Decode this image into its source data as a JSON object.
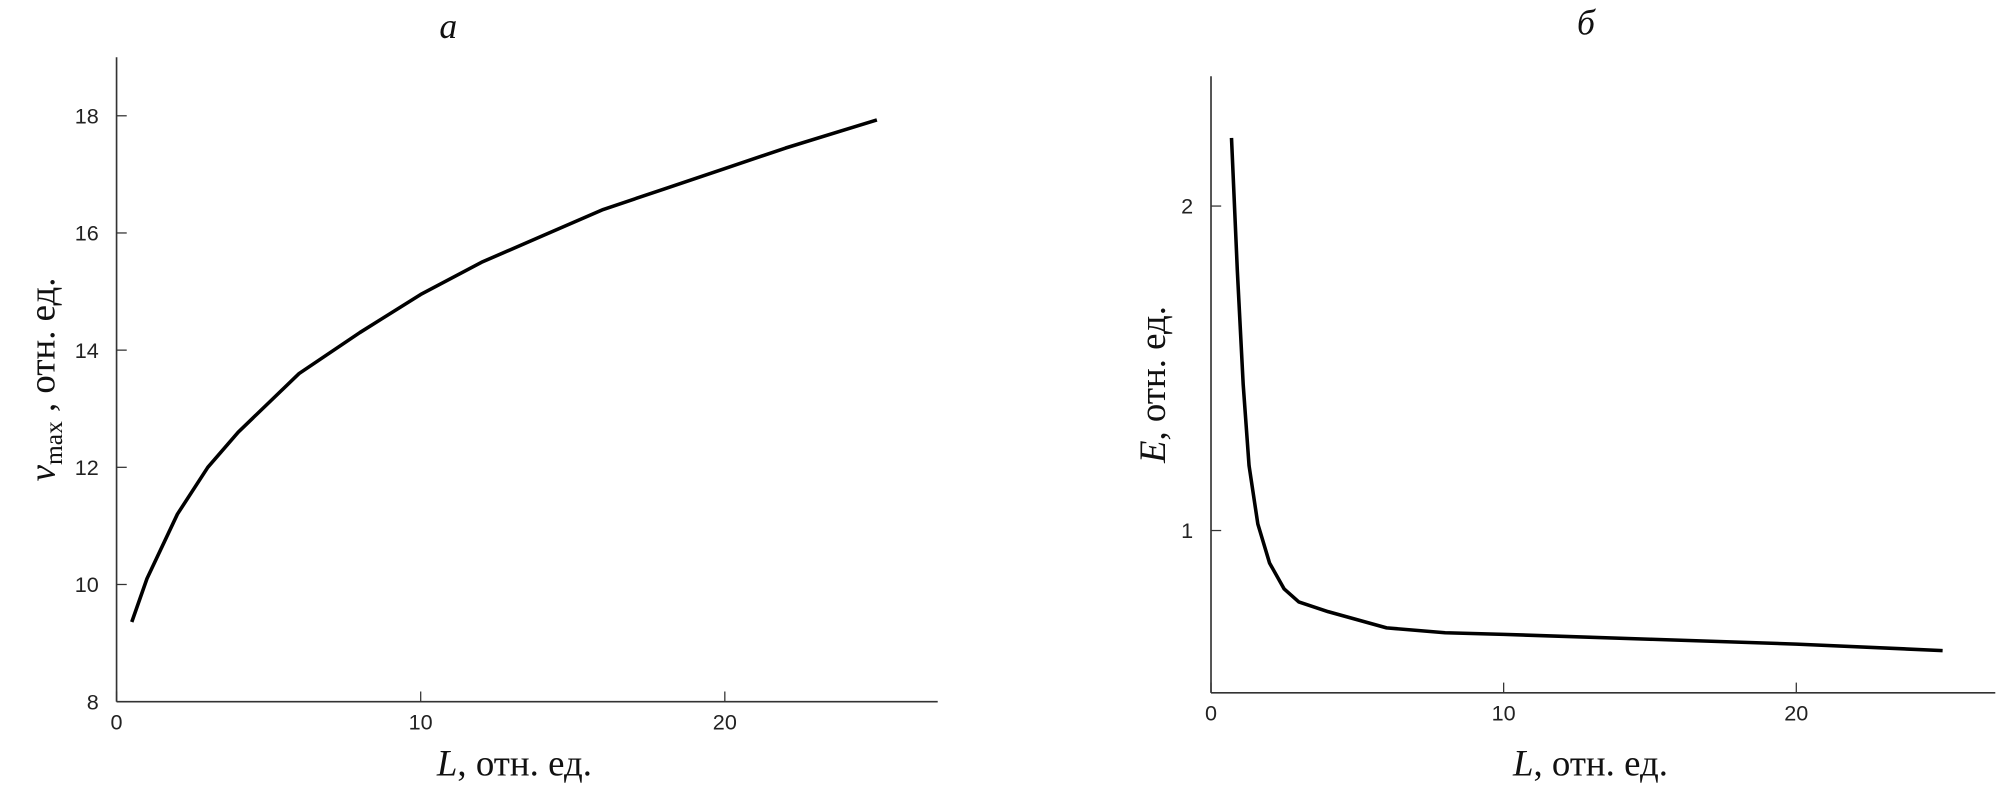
{
  "chart_data": [
    {
      "type": "line",
      "title": "а",
      "xlabel_var": "L",
      "xlabel_unit": ", отн. ед.",
      "ylabel_var": "v",
      "ylabel_sub": "max",
      "ylabel_unit": " , отн. ед.",
      "x": [
        0.5,
        1,
        2,
        3,
        4,
        5,
        6,
        8,
        10,
        12,
        14,
        16,
        18,
        20,
        22,
        25
      ],
      "values": [
        9.36,
        10.1,
        11.2,
        12.0,
        12.6,
        13.1,
        13.6,
        14.3,
        14.95,
        15.5,
        15.95,
        16.4,
        16.75,
        17.1,
        17.45,
        17.93
      ],
      "color": "#000000",
      "xlim": [
        0,
        27
      ],
      "ylim": [
        8,
        19
      ],
      "xticks": [
        0,
        10,
        20
      ],
      "yticks": [
        8,
        10,
        12,
        14,
        16,
        18
      ]
    },
    {
      "type": "line",
      "title": "б",
      "xlabel_var": "L",
      "xlabel_unit": ", отн. ед.",
      "ylabel_var": "E",
      "ylabel_unit": ", отн. ед.",
      "x": [
        0.7,
        0.9,
        1.1,
        1.3,
        1.6,
        2,
        2.5,
        3,
        4,
        6,
        8,
        10,
        15,
        20,
        25
      ],
      "values": [
        2.21,
        1.8,
        1.45,
        1.2,
        1.02,
        0.9,
        0.82,
        0.78,
        0.75,
        0.7,
        0.685,
        0.68,
        0.665,
        0.65,
        0.63
      ],
      "color": "#000000",
      "xlim": [
        0,
        26.8
      ],
      "ylim": [
        0.5,
        2.4
      ],
      "xticks": [
        0,
        10,
        20
      ],
      "yticks": [
        1,
        2
      ]
    }
  ]
}
